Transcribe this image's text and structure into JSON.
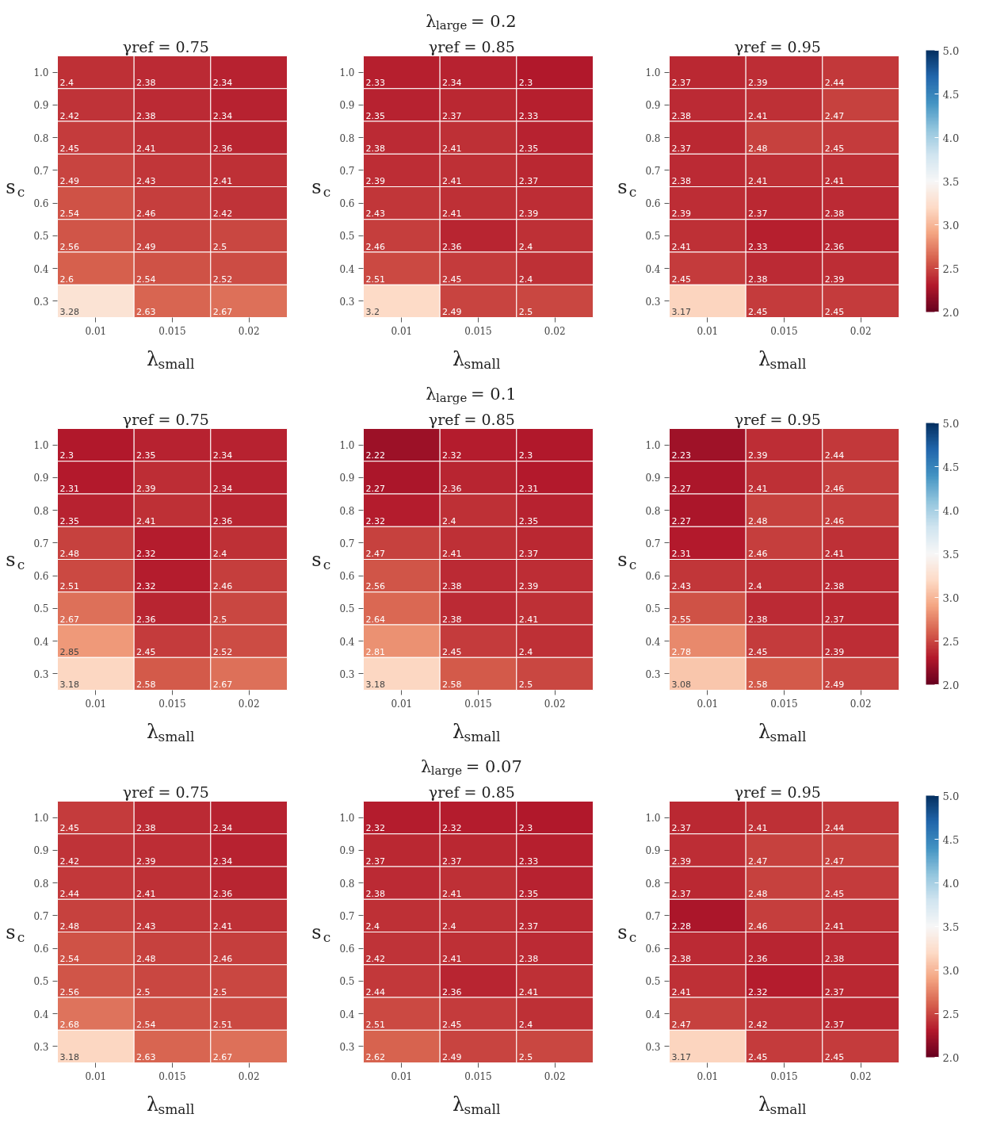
{
  "chart_data": [
    {
      "type": "heatmap",
      "title": "γref = 0.75",
      "xlabel": "λ$_{small}$",
      "ylabel": "s$_{c}$",
      "categories": [
        "0.01",
        "0.015",
        "0.02"
      ],
      "y_categories": [
        "1.0",
        "0.9",
        "0.8",
        "0.7",
        "0.6",
        "0.5",
        "0.4",
        "0.3"
      ],
      "data_labels": true,
      "cells": [
        [
          2.4,
          2.38,
          2.34
        ],
        [
          2.42,
          2.38,
          2.34
        ],
        [
          2.45,
          2.41,
          2.36
        ],
        [
          2.49,
          2.43,
          2.41
        ],
        [
          2.54,
          2.46,
          2.42
        ],
        [
          2.56,
          2.49,
          2.5
        ],
        [
          2.6,
          2.54,
          2.52
        ],
        [
          3.28,
          2.63,
          2.67
        ]
      ]
    },
    {
      "type": "heatmap",
      "subtitle": "λ$_{large}$ = 0.2",
      "title": "γref = 0.85",
      "xlabel": "λ$_{small}$",
      "ylabel": "s$_{c}$",
      "categories": [
        "0.01",
        "0.015",
        "0.02"
      ],
      "y_categories": [
        "1.0",
        "0.9",
        "0.8",
        "0.7",
        "0.6",
        "0.5",
        "0.4",
        "0.3"
      ],
      "data_labels": true,
      "cells": [
        [
          2.33,
          2.34,
          2.3
        ],
        [
          2.35,
          2.37,
          2.33
        ],
        [
          2.38,
          2.41,
          2.35
        ],
        [
          2.39,
          2.41,
          2.37
        ],
        [
          2.43,
          2.41,
          2.39
        ],
        [
          2.46,
          2.36,
          2.4
        ],
        [
          2.51,
          2.45,
          2.4
        ],
        [
          3.2,
          2.49,
          2.5
        ]
      ]
    },
    {
      "type": "heatmap",
      "title": "γref = 0.95",
      "xlabel": "λ$_{small}$",
      "ylabel": "s$_{c}$",
      "categories": [
        "0.01",
        "0.015",
        "0.02"
      ],
      "y_categories": [
        "1.0",
        "0.9",
        "0.8",
        "0.7",
        "0.6",
        "0.5",
        "0.4",
        "0.3"
      ],
      "data_labels": true,
      "clim": [
        2,
        5
      ],
      "cticks": [
        {
          "value": 2,
          "label": "2.0"
        },
        {
          "value": 2.5,
          "label": "2.5"
        },
        {
          "value": 3,
          "label": "3.0"
        },
        {
          "value": 3.5,
          "label": "3.5"
        },
        {
          "value": 4,
          "label": "4.0"
        },
        {
          "value": 4.5,
          "label": "4.5"
        },
        {
          "value": 5,
          "label": "5.0"
        }
      ],
      "cells": [
        [
          2.37,
          2.39,
          2.44
        ],
        [
          2.38,
          2.41,
          2.47
        ],
        [
          2.37,
          2.48,
          2.45
        ],
        [
          2.38,
          2.41,
          2.41
        ],
        [
          2.39,
          2.37,
          2.38
        ],
        [
          2.41,
          2.33,
          2.36
        ],
        [
          2.45,
          2.38,
          2.39
        ],
        [
          3.17,
          2.45,
          2.45
        ]
      ]
    },
    {
      "type": "heatmap",
      "title": "γref = 0.75",
      "xlabel": "λ$_{small}$",
      "ylabel": "s$_{c}$",
      "categories": [
        "0.01",
        "0.015",
        "0.02"
      ],
      "y_categories": [
        "1.0",
        "0.9",
        "0.8",
        "0.7",
        "0.6",
        "0.5",
        "0.4",
        "0.3"
      ],
      "data_labels": true,
      "cells": [
        [
          2.3,
          2.35,
          2.34
        ],
        [
          2.31,
          2.39,
          2.34
        ],
        [
          2.35,
          2.41,
          2.36
        ],
        [
          2.48,
          2.32,
          2.4
        ],
        [
          2.51,
          2.32,
          2.46
        ],
        [
          2.67,
          2.36,
          2.5
        ],
        [
          2.85,
          2.45,
          2.52
        ],
        [
          3.18,
          2.58,
          2.67
        ]
      ]
    },
    {
      "type": "heatmap",
      "subtitle": "λ$_{large}$ = 0.1",
      "title": "γref = 0.85",
      "xlabel": "λ$_{small}$",
      "ylabel": "s$_{c}$",
      "categories": [
        "0.01",
        "0.015",
        "0.02"
      ],
      "y_categories": [
        "1.0",
        "0.9",
        "0.8",
        "0.7",
        "0.6",
        "0.5",
        "0.4",
        "0.3"
      ],
      "data_labels": true,
      "cells": [
        [
          2.22,
          2.32,
          2.3
        ],
        [
          2.27,
          2.36,
          2.31
        ],
        [
          2.32,
          2.4,
          2.35
        ],
        [
          2.47,
          2.41,
          2.37
        ],
        [
          2.56,
          2.38,
          2.39
        ],
        [
          2.64,
          2.38,
          2.41
        ],
        [
          2.81,
          2.45,
          2.4
        ],
        [
          3.18,
          2.58,
          2.5
        ]
      ]
    },
    {
      "type": "heatmap",
      "title": "γref = 0.95",
      "xlabel": "λ$_{small}$",
      "ylabel": "s$_{c}$",
      "categories": [
        "0.01",
        "0.015",
        "0.02"
      ],
      "y_categories": [
        "1.0",
        "0.9",
        "0.8",
        "0.7",
        "0.6",
        "0.5",
        "0.4",
        "0.3"
      ],
      "data_labels": true,
      "clim": [
        2,
        5
      ],
      "cticks": [
        {
          "value": 2,
          "label": "2.0"
        },
        {
          "value": 2.5,
          "label": "2.5"
        },
        {
          "value": 3,
          "label": "3.0"
        },
        {
          "value": 3.5,
          "label": "3.5"
        },
        {
          "value": 4,
          "label": "4.0"
        },
        {
          "value": 4.5,
          "label": "4.5"
        },
        {
          "value": 5,
          "label": "5.0"
        }
      ],
      "cells": [
        [
          2.23,
          2.39,
          2.44
        ],
        [
          2.27,
          2.41,
          2.46
        ],
        [
          2.27,
          2.48,
          2.46
        ],
        [
          2.31,
          2.46,
          2.41
        ],
        [
          2.43,
          2.4,
          2.38
        ],
        [
          2.55,
          2.38,
          2.37
        ],
        [
          2.78,
          2.45,
          2.39
        ],
        [
          3.08,
          2.58,
          2.49
        ]
      ]
    },
    {
      "type": "heatmap",
      "title": "γref = 0.75",
      "xlabel": "λ$_{small}$",
      "ylabel": "s$_{c}$",
      "categories": [
        "0.01",
        "0.015",
        "0.02"
      ],
      "y_categories": [
        "1.0",
        "0.9",
        "0.8",
        "0.7",
        "0.6",
        "0.5",
        "0.4",
        "0.3"
      ],
      "data_labels": true,
      "cells": [
        [
          2.45,
          2.38,
          2.34
        ],
        [
          2.42,
          2.39,
          2.34
        ],
        [
          2.44,
          2.41,
          2.36
        ],
        [
          2.48,
          2.43,
          2.41
        ],
        [
          2.54,
          2.48,
          2.46
        ],
        [
          2.56,
          2.5,
          2.5
        ],
        [
          2.68,
          2.54,
          2.51
        ],
        [
          3.18,
          2.63,
          2.67
        ]
      ]
    },
    {
      "type": "heatmap",
      "subtitle": "λ$_{large}$ = 0.07",
      "title": "γref = 0.85",
      "xlabel": "λ$_{small}$",
      "ylabel": "s$_{c}$",
      "categories": [
        "0.01",
        "0.015",
        "0.02"
      ],
      "y_categories": [
        "1.0",
        "0.9",
        "0.8",
        "0.7",
        "0.6",
        "0.5",
        "0.4",
        "0.3"
      ],
      "data_labels": true,
      "cells": [
        [
          2.32,
          2.32,
          2.3
        ],
        [
          2.37,
          2.37,
          2.33
        ],
        [
          2.38,
          2.41,
          2.35
        ],
        [
          2.4,
          2.4,
          2.37
        ],
        [
          2.42,
          2.41,
          2.38
        ],
        [
          2.44,
          2.36,
          2.41
        ],
        [
          2.51,
          2.45,
          2.4
        ],
        [
          2.62,
          2.49,
          2.5
        ]
      ]
    },
    {
      "type": "heatmap",
      "title": "γref = 0.95",
      "xlabel": "λ$_{small}$",
      "ylabel": "s$_{c}$",
      "categories": [
        "0.01",
        "0.015",
        "0.02"
      ],
      "y_categories": [
        "1.0",
        "0.9",
        "0.8",
        "0.7",
        "0.6",
        "0.5",
        "0.4",
        "0.3"
      ],
      "data_labels": true,
      "clim": [
        2,
        5
      ],
      "cticks": [
        {
          "value": 2,
          "label": "2.0"
        },
        {
          "value": 2.5,
          "label": "2.5"
        },
        {
          "value": 3,
          "label": "3.0"
        },
        {
          "value": 3.5,
          "label": "3.5"
        },
        {
          "value": 4,
          "label": "4.0"
        },
        {
          "value": 4.5,
          "label": "4.5"
        },
        {
          "value": 5,
          "label": "5.0"
        }
      ],
      "cells": [
        [
          2.37,
          2.41,
          2.44
        ],
        [
          2.39,
          2.47,
          2.47
        ],
        [
          2.37,
          2.48,
          2.45
        ],
        [
          2.28,
          2.46,
          2.41
        ],
        [
          2.38,
          2.36,
          2.38
        ],
        [
          2.41,
          2.32,
          2.37
        ],
        [
          2.47,
          2.42,
          2.37
        ],
        [
          3.17,
          2.45,
          2.45
        ]
      ]
    }
  ]
}
